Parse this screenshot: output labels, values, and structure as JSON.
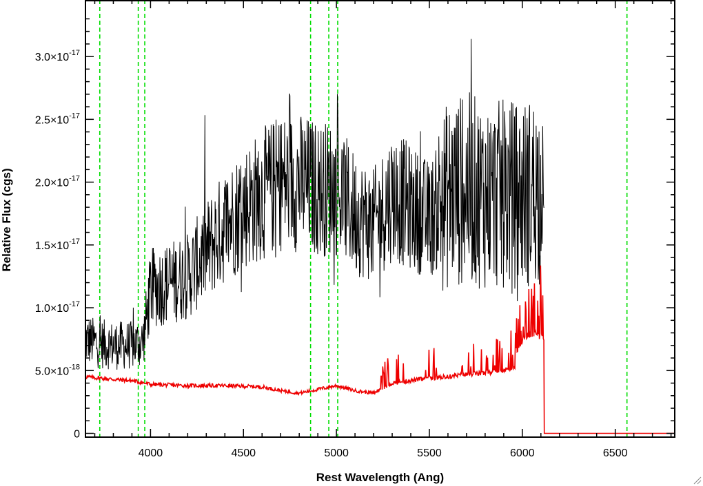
{
  "chart_data": {
    "type": "line",
    "title": "",
    "xlabel": "Rest Wavelength (Ang)",
    "ylabel": "Relative Flux (cgs)",
    "xlim": [
      3650,
      6820
    ],
    "ylim": [
      -3e-19,
      3.45e-17
    ],
    "grid": false,
    "legend": "none",
    "x_ticks": [
      {
        "value": 4000,
        "label": "4000"
      },
      {
        "value": 4500,
        "label": "4500"
      },
      {
        "value": 5000,
        "label": "5000"
      },
      {
        "value": 5500,
        "label": "5500"
      },
      {
        "value": 6000,
        "label": "6000"
      },
      {
        "value": 6500,
        "label": "6500"
      }
    ],
    "y_ticks": [
      {
        "value": 0,
        "mantissa": "0",
        "exponent": ""
      },
      {
        "value": 5e-18,
        "mantissa": "5.0×10",
        "exponent": "-18"
      },
      {
        "value": 1e-17,
        "mantissa": "1.0×10",
        "exponent": "-17"
      },
      {
        "value": 1.5e-17,
        "mantissa": "1.5×10",
        "exponent": "-17"
      },
      {
        "value": 2e-17,
        "mantissa": "2.0×10",
        "exponent": "-17"
      },
      {
        "value": 2.5e-17,
        "mantissa": "2.5×10",
        "exponent": "-17"
      },
      {
        "value": 3e-17,
        "mantissa": "3.0×10",
        "exponent": "-17"
      }
    ],
    "emission_line_markers": {
      "color": "#00dd00",
      "style": "dashed",
      "x": [
        3727,
        3934,
        3969,
        4861,
        4959,
        5007,
        6563
      ]
    },
    "series": [
      {
        "role": "flux",
        "color": "#000000",
        "noise": "high",
        "continuum": [
          [
            3650,
            7.5e-18
          ],
          [
            3700,
            7.2e-18
          ],
          [
            3800,
            7e-18
          ],
          [
            3900,
            7e-18
          ],
          [
            3960,
            7.3e-18
          ],
          [
            4000,
            1.15e-17
          ],
          [
            4100,
            1.2e-17
          ],
          [
            4200,
            1.25e-17
          ],
          [
            4300,
            1.45e-17
          ],
          [
            4400,
            1.65e-17
          ],
          [
            4500,
            1.8e-17
          ],
          [
            4600,
            1.9e-17
          ],
          [
            4700,
            2e-17
          ],
          [
            4800,
            2e-17
          ],
          [
            4900,
            1.95e-17
          ],
          [
            5000,
            1.95e-17
          ],
          [
            5100,
            1.75e-17
          ],
          [
            5200,
            1.65e-17
          ],
          [
            5300,
            1.9e-17
          ],
          [
            5400,
            1.8e-17
          ],
          [
            5500,
            1.7e-17
          ],
          [
            5600,
            1.9e-17
          ],
          [
            5700,
            1.95e-17
          ],
          [
            5800,
            1.9e-17
          ],
          [
            5900,
            1.9e-17
          ],
          [
            6000,
            1.9e-17
          ],
          [
            6100,
            1.95e-17
          ],
          [
            6118,
            1.95e-17
          ]
        ],
        "end_x": 6118
      },
      {
        "role": "error",
        "color": "#ee0000",
        "continuum": [
          [
            3650,
            4.5e-18
          ],
          [
            3800,
            4.3e-18
          ],
          [
            3900,
            4.2e-18
          ],
          [
            4000,
            3.9e-18
          ],
          [
            4200,
            3.8e-18
          ],
          [
            4400,
            3.8e-18
          ],
          [
            4600,
            3.7e-18
          ],
          [
            4700,
            3.4e-18
          ],
          [
            4800,
            3.2e-18
          ],
          [
            5000,
            3.8e-18
          ],
          [
            5100,
            3.4e-18
          ],
          [
            5200,
            3.2e-18
          ],
          [
            5300,
            4e-18
          ],
          [
            5400,
            4.2e-18
          ],
          [
            5500,
            4.4e-18
          ],
          [
            5600,
            4.5e-18
          ],
          [
            5700,
            4.7e-18
          ],
          [
            5800,
            4.8e-18
          ],
          [
            5900,
            5e-18
          ],
          [
            5960,
            5.3e-18
          ],
          [
            5980,
            7e-18
          ],
          [
            6050,
            8e-18
          ],
          [
            6118,
            7.5e-18
          ]
        ],
        "drop_at": 6118,
        "after_drop_value": 0
      }
    ]
  }
}
